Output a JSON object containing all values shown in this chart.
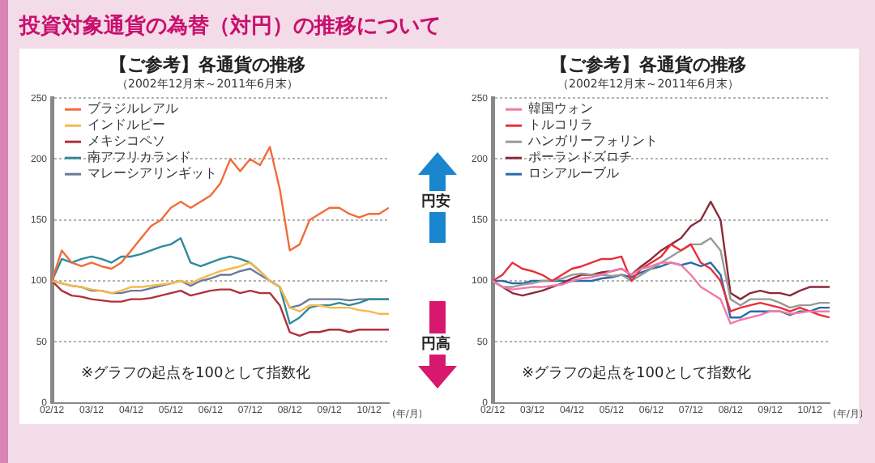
{
  "chart_data": [
    {
      "type": "line",
      "title": "【ご参考】各通貨の推移",
      "subtitle": "（2002年12月末～2011年6月末）",
      "xlabel": "(年/月)",
      "annotations": [
        "投資対象通貨の為替（対円）の推移について",
        "※グラフの起点を100として指数化",
        "円安",
        "円高"
      ],
      "x": [
        "2002-12",
        "2003-03",
        "2003-06",
        "2003-09",
        "2003-12",
        "2004-03",
        "2004-06",
        "2004-09",
        "2004-12",
        "2005-03",
        "2005-06",
        "2005-09",
        "2005-12",
        "2006-03",
        "2006-06",
        "2006-09",
        "2006-12",
        "2007-03",
        "2007-06",
        "2007-09",
        "2007-12",
        "2008-03",
        "2008-06",
        "2008-09",
        "2008-12",
        "2009-03",
        "2009-06",
        "2009-09",
        "2009-12",
        "2010-03",
        "2010-06",
        "2010-09",
        "2010-12",
        "2011-03",
        "2011-06"
      ],
      "series": [
        {
          "name": "ブラジルレアル",
          "color": "#f26b3a",
          "values": [
            100,
            125,
            115,
            112,
            115,
            112,
            110,
            115,
            125,
            135,
            145,
            150,
            160,
            165,
            160,
            165,
            170,
            180,
            200,
            190,
            200,
            195,
            210,
            175,
            125,
            130,
            150,
            155,
            160,
            160,
            155,
            152,
            155,
            155,
            160
          ]
        },
        {
          "name": "インドルピー",
          "color": "#f8b84a",
          "values": [
            100,
            98,
            96,
            95,
            93,
            92,
            90,
            92,
            95,
            95,
            96,
            97,
            98,
            100,
            98,
            102,
            105,
            108,
            110,
            112,
            115,
            108,
            100,
            95,
            78,
            75,
            80,
            80,
            78,
            78,
            78,
            76,
            75,
            73,
            73
          ]
        },
        {
          "name": "メキシコペソ",
          "color": "#b0303a",
          "values": [
            100,
            92,
            88,
            87,
            85,
            84,
            83,
            83,
            85,
            85,
            86,
            88,
            90,
            92,
            88,
            90,
            92,
            93,
            93,
            90,
            92,
            90,
            90,
            80,
            58,
            55,
            58,
            58,
            60,
            60,
            58,
            60,
            60,
            60,
            60
          ]
        },
        {
          "name": "南アフリカランド",
          "color": "#2e8a9a",
          "values": [
            100,
            118,
            115,
            118,
            120,
            118,
            115,
            120,
            120,
            122,
            125,
            128,
            130,
            135,
            115,
            112,
            115,
            118,
            120,
            118,
            115,
            108,
            100,
            95,
            65,
            70,
            78,
            80,
            80,
            82,
            80,
            82,
            85,
            85,
            85
          ]
        },
        {
          "name": "マレーシアリンギット",
          "color": "#6a7a9a",
          "values": [
            100,
            98,
            96,
            95,
            92,
            92,
            90,
            90,
            92,
            92,
            94,
            96,
            98,
            100,
            96,
            100,
            102,
            105,
            105,
            108,
            110,
            105,
            100,
            95,
            78,
            80,
            85,
            85,
            85,
            85,
            84,
            85,
            85,
            85,
            85
          ]
        }
      ],
      "xlim": [
        "2002-12",
        "2011-06"
      ],
      "xticks": [
        {
          "value": "2002-12",
          "label": "02/12"
        },
        {
          "value": "2003-12",
          "label": "03/12"
        },
        {
          "value": "2004-12",
          "label": "04/12"
        },
        {
          "value": "2005-12",
          "label": "05/12"
        },
        {
          "value": "2006-12",
          "label": "06/12"
        },
        {
          "value": "2007-12",
          "label": "07/12"
        },
        {
          "value": "2008-12",
          "label": "08/12"
        },
        {
          "value": "2009-12",
          "label": "09/12"
        },
        {
          "value": "2010-12",
          "label": "10/12"
        }
      ],
      "ylim": [
        0,
        250
      ],
      "yticks": [
        0,
        50,
        100,
        150,
        200,
        250
      ],
      "grid": "y",
      "legend": "top left",
      "marker": "none",
      "line_style": "solid"
    },
    {
      "type": "line",
      "title": "【ご参考】各通貨の推移",
      "subtitle": "（2002年12月末～2011年6月末）",
      "xlabel": "(年/月)",
      "annotations": [
        "※グラフの起点を100として指数化"
      ],
      "x": [
        "2002-12",
        "2003-03",
        "2003-06",
        "2003-09",
        "2003-12",
        "2004-03",
        "2004-06",
        "2004-09",
        "2004-12",
        "2005-03",
        "2005-06",
        "2005-09",
        "2005-12",
        "2006-03",
        "2006-06",
        "2006-09",
        "2006-12",
        "2007-03",
        "2007-06",
        "2007-09",
        "2007-12",
        "2008-03",
        "2008-06",
        "2008-09",
        "2008-12",
        "2009-03",
        "2009-06",
        "2009-09",
        "2009-12",
        "2010-03",
        "2010-06",
        "2010-09",
        "2010-12",
        "2011-03",
        "2011-06"
      ],
      "series": [
        {
          "name": "韓国ウォン",
          "color": "#f07aa8",
          "values": [
            100,
            95,
            93,
            94,
            95,
            95,
            96,
            97,
            100,
            102,
            103,
            105,
            108,
            110,
            105,
            110,
            112,
            115,
            115,
            113,
            105,
            95,
            90,
            85,
            65,
            68,
            70,
            72,
            75,
            75,
            73,
            74,
            75,
            75,
            75
          ]
        },
        {
          "name": "トルコリラ",
          "color": "#e8303a",
          "values": [
            100,
            105,
            115,
            110,
            108,
            105,
            100,
            105,
            110,
            112,
            115,
            118,
            118,
            120,
            100,
            110,
            115,
            120,
            130,
            125,
            130,
            115,
            110,
            100,
            75,
            78,
            80,
            82,
            80,
            78,
            75,
            78,
            75,
            72,
            70
          ]
        },
        {
          "name": "ハンガリーフォリント",
          "color": "#999999",
          "values": [
            100,
            95,
            95,
            97,
            98,
            100,
            100,
            102,
            105,
            106,
            105,
            105,
            104,
            105,
            100,
            105,
            110,
            115,
            120,
            125,
            130,
            130,
            135,
            125,
            85,
            80,
            85,
            85,
            85,
            82,
            78,
            80,
            80,
            82,
            82
          ]
        },
        {
          "name": "ポーランドズロチ",
          "color": "#8a2a3a",
          "values": [
            100,
            95,
            90,
            88,
            90,
            92,
            95,
            98,
            102,
            105,
            105,
            107,
            108,
            110,
            105,
            112,
            118,
            125,
            130,
            135,
            145,
            150,
            165,
            150,
            90,
            85,
            90,
            92,
            90,
            90,
            88,
            92,
            95,
            95,
            95
          ]
        },
        {
          "name": "ロシアルーブル",
          "color": "#2a6aaa",
          "values": [
            100,
            100,
            98,
            98,
            100,
            100,
            100,
            100,
            100,
            100,
            100,
            102,
            103,
            105,
            103,
            107,
            110,
            112,
            115,
            113,
            115,
            112,
            115,
            105,
            70,
            70,
            75,
            75,
            75,
            75,
            72,
            75,
            75,
            78,
            78
          ]
        }
      ],
      "xlim": [
        "2002-12",
        "2011-06"
      ],
      "xticks": [
        {
          "value": "2002-12",
          "label": "02/12"
        },
        {
          "value": "2003-12",
          "label": "03/12"
        },
        {
          "value": "2004-12",
          "label": "04/12"
        },
        {
          "value": "2005-12",
          "label": "05/12"
        },
        {
          "value": "2006-12",
          "label": "06/12"
        },
        {
          "value": "2007-12",
          "label": "07/12"
        },
        {
          "value": "2008-12",
          "label": "08/12"
        },
        {
          "value": "2009-12",
          "label": "09/12"
        },
        {
          "value": "2010-12",
          "label": "10/12"
        }
      ],
      "ylim": [
        0,
        250
      ],
      "yticks": [
        0,
        50,
        100,
        150,
        200,
        250
      ],
      "grid": "y",
      "legend": "top left",
      "marker": "none",
      "line_style": "solid"
    }
  ]
}
